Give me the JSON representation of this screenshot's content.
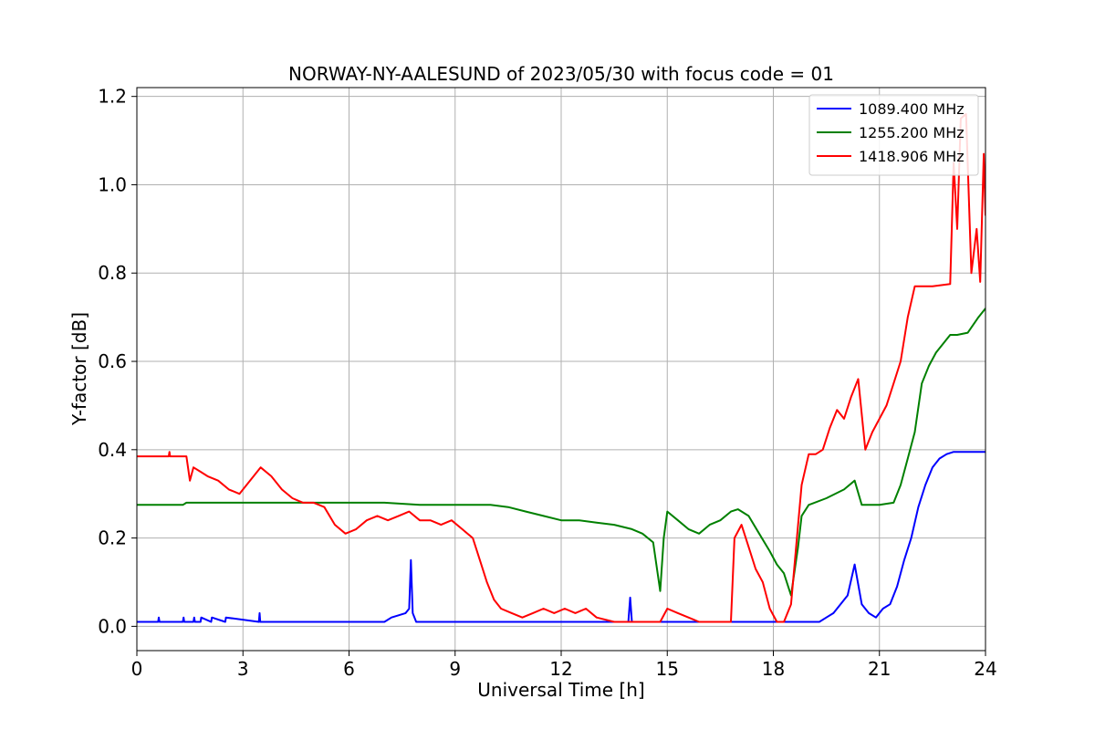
{
  "chart_data": {
    "type": "line",
    "title": "NORWAY-NY-AALESUND of 2023/05/30 with focus code = 01",
    "xlabel": "Universal Time [h]",
    "ylabel": "Y-factor [dB]",
    "xlim": [
      0,
      24
    ],
    "ylim": [
      -0.055,
      1.22
    ],
    "xticks": [
      0,
      3,
      6,
      9,
      12,
      15,
      18,
      21,
      24
    ],
    "xtick_labels": [
      "0",
      "3",
      "6",
      "9",
      "12",
      "15",
      "18",
      "21",
      "24"
    ],
    "yticks": [
      0.0,
      0.2,
      0.4,
      0.6,
      0.8,
      1.0,
      1.2
    ],
    "ytick_labels": [
      "0.0",
      "0.2",
      "0.4",
      "0.6",
      "0.8",
      "1.0",
      "1.2"
    ],
    "grid": true,
    "legend_position": "top-right",
    "series": [
      {
        "name": "1089.400 MHz",
        "color": "#0000ff",
        "x": [
          0,
          0.6,
          0.62,
          0.64,
          1.3,
          1.32,
          1.34,
          1.6,
          1.62,
          1.64,
          1.8,
          1.82,
          2.1,
          2.12,
          2.5,
          2.52,
          3.45,
          3.47,
          3.49,
          7.0,
          7.2,
          7.4,
          7.6,
          7.7,
          7.75,
          7.8,
          7.9,
          8.0,
          13.9,
          13.95,
          14.0,
          19.3,
          19.5,
          19.7,
          19.9,
          20.1,
          20.3,
          20.5,
          20.7,
          20.9,
          21.1,
          21.3,
          21.5,
          21.7,
          21.9,
          22.1,
          22.3,
          22.5,
          22.7,
          22.9,
          23.1,
          23.2,
          23.5,
          24
        ],
        "y": [
          0.01,
          0.01,
          0.02,
          0.01,
          0.01,
          0.02,
          0.01,
          0.01,
          0.02,
          0.01,
          0.01,
          0.02,
          0.01,
          0.02,
          0.01,
          0.02,
          0.01,
          0.03,
          0.01,
          0.01,
          0.02,
          0.025,
          0.03,
          0.04,
          0.15,
          0.03,
          0.01,
          0.01,
          0.01,
          0.065,
          0.01,
          0.01,
          0.02,
          0.03,
          0.05,
          0.07,
          0.14,
          0.05,
          0.03,
          0.02,
          0.04,
          0.05,
          0.09,
          0.15,
          0.2,
          0.27,
          0.32,
          0.36,
          0.38,
          0.39,
          0.395,
          0.395,
          0.395,
          0.395
        ]
      },
      {
        "name": "1255.200 MHz",
        "color": "#008000",
        "x": [
          0,
          1.3,
          1.4,
          1.5,
          2.0,
          3.0,
          4.0,
          5.0,
          6.0,
          7.0,
          8.0,
          9.0,
          10.0,
          10.5,
          11.0,
          11.5,
          12.0,
          12.5,
          13.0,
          13.5,
          14.0,
          14.3,
          14.6,
          14.8,
          14.9,
          15.0,
          15.3,
          15.6,
          15.9,
          16.2,
          16.5,
          16.8,
          17.0,
          17.3,
          17.6,
          17.9,
          18.1,
          18.3,
          18.5,
          18.7,
          18.8,
          19.0,
          19.5,
          20.0,
          20.3,
          20.5,
          21.0,
          21.4,
          21.6,
          21.8,
          22.0,
          22.2,
          22.4,
          22.6,
          22.8,
          23.0,
          23.2,
          23.5,
          23.8,
          24
        ],
        "y": [
          0.275,
          0.275,
          0.28,
          0.28,
          0.28,
          0.28,
          0.28,
          0.28,
          0.28,
          0.28,
          0.275,
          0.275,
          0.275,
          0.27,
          0.26,
          0.25,
          0.24,
          0.24,
          0.235,
          0.23,
          0.22,
          0.21,
          0.19,
          0.08,
          0.2,
          0.26,
          0.24,
          0.22,
          0.21,
          0.23,
          0.24,
          0.26,
          0.265,
          0.25,
          0.21,
          0.17,
          0.14,
          0.12,
          0.07,
          0.18,
          0.25,
          0.275,
          0.29,
          0.31,
          0.33,
          0.275,
          0.275,
          0.28,
          0.32,
          0.38,
          0.44,
          0.55,
          0.59,
          0.62,
          0.64,
          0.66,
          0.66,
          0.665,
          0.7,
          0.72
        ]
      },
      {
        "name": "1418.906 MHz",
        "color": "#ff0000",
        "x": [
          0,
          0.9,
          0.92,
          0.94,
          1.4,
          1.5,
          1.6,
          1.8,
          2.0,
          2.3,
          2.6,
          2.9,
          3.2,
          3.5,
          3.8,
          4.1,
          4.4,
          4.7,
          5.0,
          5.3,
          5.6,
          5.9,
          6.2,
          6.5,
          6.8,
          7.1,
          7.4,
          7.7,
          8.0,
          8.3,
          8.6,
          8.9,
          9.2,
          9.5,
          9.7,
          9.9,
          10.1,
          10.3,
          10.6,
          10.9,
          11.2,
          11.5,
          11.8,
          12.1,
          12.4,
          12.7,
          13.0,
          13.5,
          14.0,
          14.5,
          14.8,
          15.0,
          15.3,
          15.6,
          15.9,
          16.2,
          16.5,
          16.8,
          16.9,
          17.1,
          17.3,
          17.5,
          17.7,
          17.9,
          18.1,
          18.3,
          18.5,
          18.7,
          18.8,
          19.0,
          19.2,
          19.4,
          19.6,
          19.8,
          20.0,
          20.2,
          20.4,
          20.6,
          20.8,
          21.0,
          21.2,
          21.4,
          21.6,
          21.8,
          22.0,
          22.5,
          23.0,
          23.1,
          23.2,
          23.3,
          23.45,
          23.6,
          23.75,
          23.85,
          23.95,
          24
        ],
        "y": [
          0.385,
          0.385,
          0.395,
          0.385,
          0.385,
          0.33,
          0.36,
          0.35,
          0.34,
          0.33,
          0.31,
          0.3,
          0.33,
          0.36,
          0.34,
          0.31,
          0.29,
          0.28,
          0.28,
          0.27,
          0.23,
          0.21,
          0.22,
          0.24,
          0.25,
          0.24,
          0.25,
          0.26,
          0.24,
          0.24,
          0.23,
          0.24,
          0.22,
          0.2,
          0.15,
          0.1,
          0.06,
          0.04,
          0.03,
          0.02,
          0.03,
          0.04,
          0.03,
          0.04,
          0.03,
          0.04,
          0.02,
          0.01,
          0.01,
          0.01,
          0.01,
          0.04,
          0.03,
          0.02,
          0.01,
          0.01,
          0.01,
          0.01,
          0.2,
          0.23,
          0.18,
          0.13,
          0.1,
          0.04,
          0.01,
          0.01,
          0.05,
          0.23,
          0.32,
          0.39,
          0.39,
          0.4,
          0.45,
          0.49,
          0.47,
          0.52,
          0.56,
          0.4,
          0.44,
          0.47,
          0.5,
          0.55,
          0.6,
          0.7,
          0.77,
          0.77,
          0.775,
          1.05,
          0.9,
          1.15,
          1.16,
          0.8,
          0.9,
          0.78,
          1.07,
          0.93
        ]
      }
    ]
  }
}
